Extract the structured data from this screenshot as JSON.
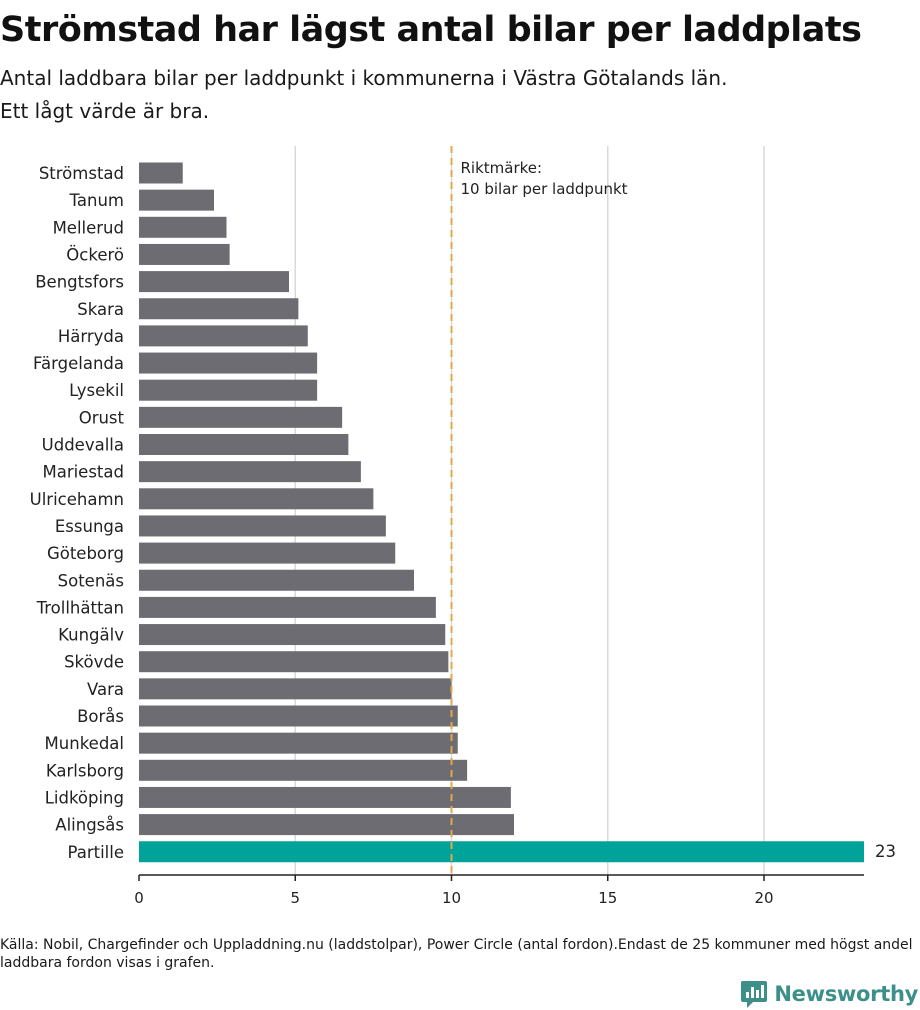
{
  "header": {
    "title": "Strömstad har lägst antal bilar per laddplats",
    "subtitle_line1": "Antal laddbara bilar per laddpunkt i kommunerna i Västra Götalands län.",
    "subtitle_line2": "Ett lågt värde är bra."
  },
  "footer": {
    "source": "Källa: Nobil, Chargefinder och Uppladdning.nu (laddstolpar), Power Circle (antal fordon).Endast de 25 kommuner med högst andel laddbara fordon visas i grafen.",
    "logo_text": "Newsworthy"
  },
  "chart_data": {
    "type": "bar",
    "orientation": "horizontal",
    "title": "",
    "xlabel": "",
    "ylabel": "",
    "xlim": [
      0,
      23.2
    ],
    "xticks": [
      0,
      5,
      10,
      15,
      20
    ],
    "grid": true,
    "categories": [
      "Strömstad",
      "Tanum",
      "Mellerud",
      "Öckerö",
      "Bengtsfors",
      "Skara",
      "Härryda",
      "Färgelanda",
      "Lysekil",
      "Orust",
      "Uddevalla",
      "Mariestad",
      "Ulricehamn",
      "Essunga",
      "Göteborg",
      "Sotenäs",
      "Trollhättan",
      "Kungälv",
      "Skövde",
      "Vara",
      "Borås",
      "Munkedal",
      "Karlsborg",
      "Lidköping",
      "Alingsås",
      "Partille"
    ],
    "values": [
      1.4,
      2.4,
      2.8,
      2.9,
      4.8,
      5.1,
      5.4,
      5.7,
      5.7,
      6.5,
      6.7,
      7.1,
      7.5,
      7.9,
      8.2,
      8.8,
      9.5,
      9.8,
      9.9,
      10.0,
      10.2,
      10.2,
      10.5,
      11.9,
      12.0,
      23.2
    ],
    "highlight": {
      "category": "Partille",
      "label": "23",
      "color": "#00a39a"
    },
    "bar_color": "#6d6c72",
    "reference_line": {
      "value": 10,
      "label_line1": "Riktmärke:",
      "label_line2": "10 bilar per laddpunkt",
      "color": "#e0a94a"
    }
  }
}
